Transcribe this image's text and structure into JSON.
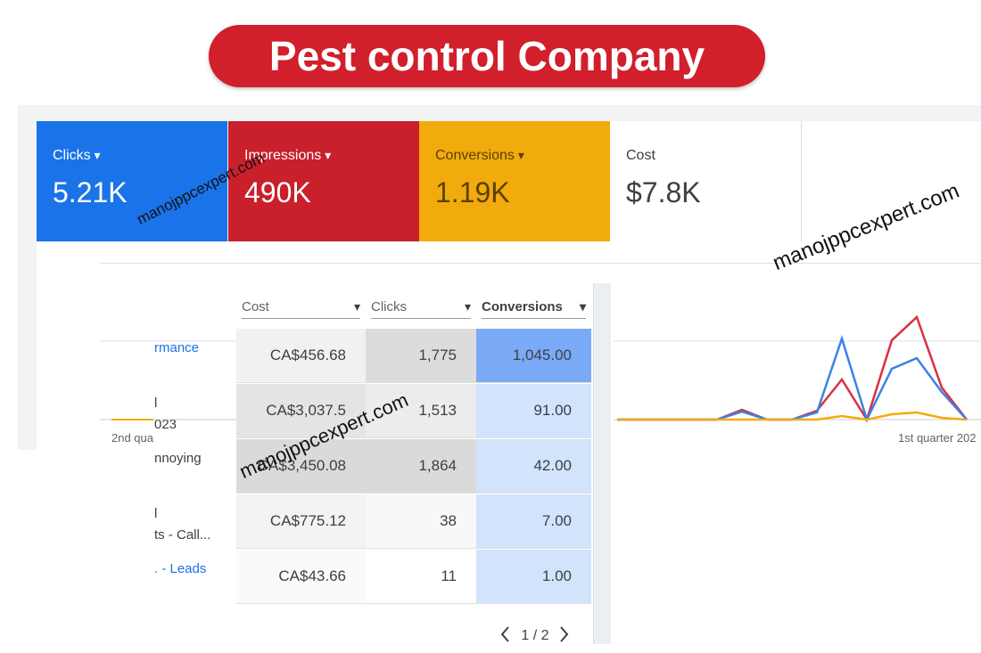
{
  "header": {
    "title": "Pest control Company"
  },
  "cards": [
    {
      "label": "Clicks",
      "value": "5.21K",
      "color": "#1a73e8"
    },
    {
      "label": "Impressions",
      "value": "490K",
      "color": "#c9202c"
    },
    {
      "label": "Conversions",
      "value": "1.19K",
      "color": "#f2ab0c"
    },
    {
      "label": "Cost",
      "value": "$7.8K",
      "color": "#ffffff"
    }
  ],
  "table": {
    "columns": [
      "Cost",
      "Clicks",
      "Conversions"
    ],
    "rows": [
      {
        "label": [
          "rmance"
        ],
        "link": true,
        "cells": [
          "CA$456.68",
          "1,775",
          "1,045.00"
        ]
      },
      {
        "label": [
          "l",
          "023"
        ],
        "link": false,
        "cells": [
          "CA$3,037.5",
          "1,513",
          "91.00"
        ]
      },
      {
        "label": [
          "nnoying"
        ],
        "link": false,
        "cells": [
          "CA$3,450.08",
          "1,864",
          "42.00"
        ]
      },
      {
        "label": [
          "l",
          "ts - Call..."
        ],
        "link": false,
        "cells": [
          "CA$775.12",
          "38",
          "7.00"
        ]
      },
      {
        "label": [
          ". - Leads"
        ],
        "link": true,
        "cells": [
          "CA$43.66",
          "11",
          "1.00"
        ]
      }
    ],
    "pagination": "1 / 2"
  },
  "chart": {
    "x_labels": [
      "2nd qua",
      "1st quarter 202"
    ],
    "series": [
      {
        "color": "#d93040",
        "values": [
          0,
          0,
          0,
          0,
          0,
          11,
          0,
          0,
          10,
          45,
          0,
          89,
          115,
          36,
          0
        ]
      },
      {
        "color": "#3b82e6",
        "values": [
          0,
          0,
          0,
          0,
          0,
          9,
          0,
          0,
          8,
          91,
          0,
          57,
          69,
          31,
          0
        ]
      },
      {
        "color": "#f2ab0c",
        "values": [
          0,
          0,
          0,
          0,
          0,
          0,
          0,
          0,
          0,
          4,
          0,
          6,
          8,
          2,
          0
        ]
      }
    ]
  },
  "watermarks": [
    "manojppcexpert.com",
    "manojppcexpert.com",
    "manojppcexpert.com"
  ]
}
